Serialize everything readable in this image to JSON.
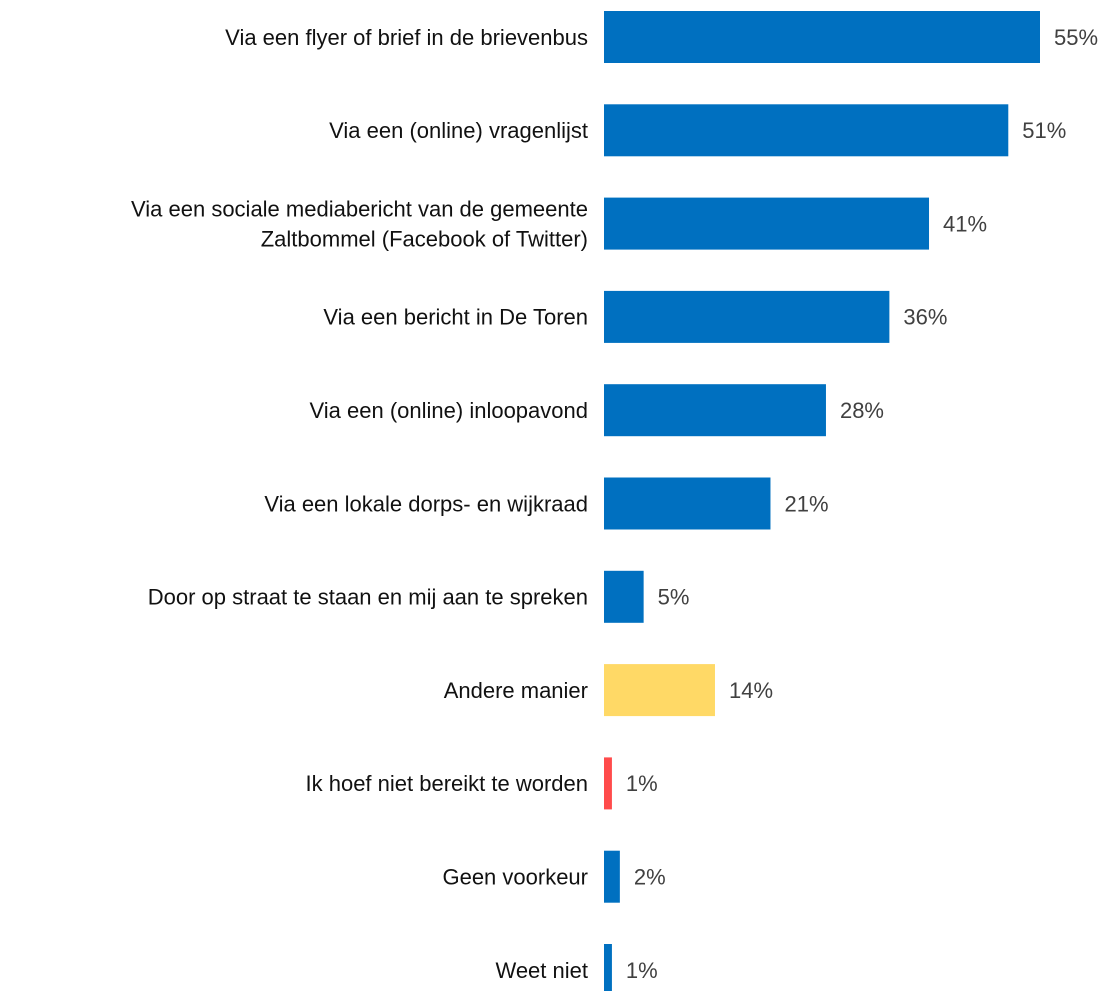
{
  "chart_data": {
    "type": "bar",
    "orientation": "horizontal",
    "categories": [
      "Via een flyer of brief in de brievenbus",
      "Via een (online) vragenlijst",
      "Via een sociale mediabericht van de gemeente\nZaltbommel (Facebook of Twitter)",
      "Via een bericht in De Toren",
      "Via een (online) inloopavond",
      "Via een lokale dorps- en wijkraad",
      "Door op straat te staan en mij aan te spreken",
      "Andere manier",
      "Ik hoef niet bereikt te worden",
      "Geen voorkeur",
      "Weet niet"
    ],
    "values": [
      55,
      51,
      41,
      36,
      28,
      21,
      5,
      14,
      1,
      2,
      1
    ],
    "value_labels": [
      "55%",
      "51%",
      "41%",
      "36%",
      "28%",
      "21%",
      "5%",
      "14%",
      "1%",
      "2%",
      "1%"
    ],
    "colors": [
      "#0070c0",
      "#0070c0",
      "#0070c0",
      "#0070c0",
      "#0070c0",
      "#0070c0",
      "#0070c0",
      "#ffd966",
      "#ff4b4b",
      "#0070c0",
      "#0070c0"
    ]
  }
}
